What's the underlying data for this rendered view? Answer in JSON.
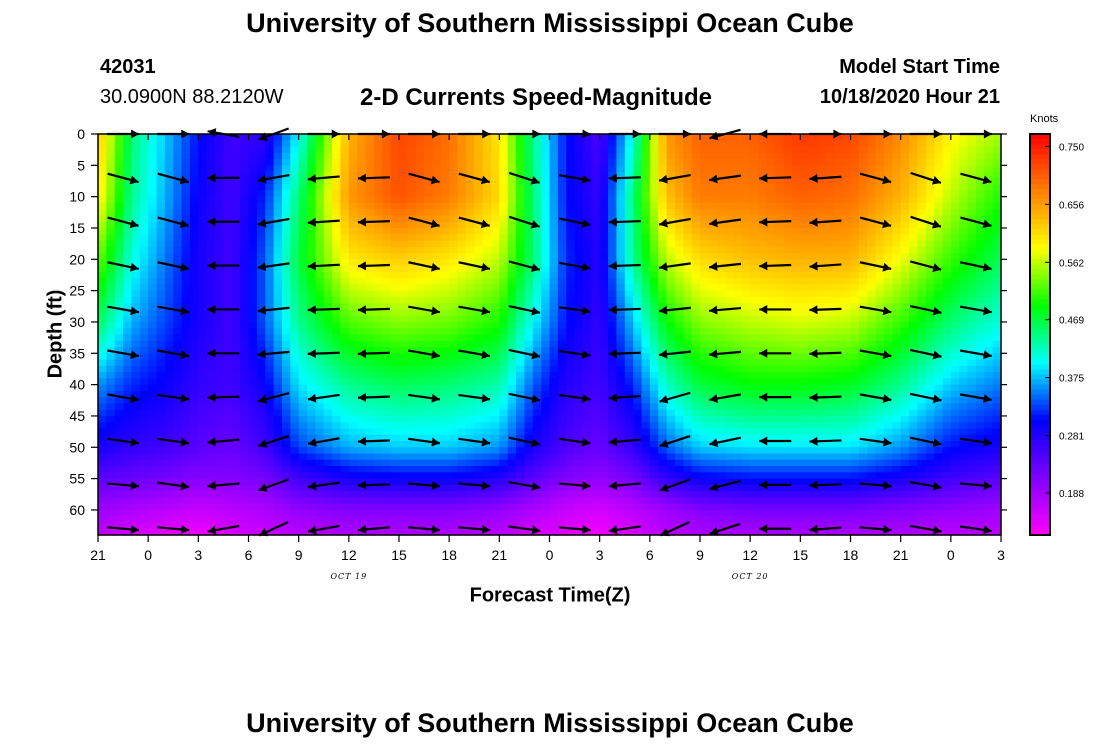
{
  "page": {
    "title_top": "University of Southern Mississippi Ocean Cube",
    "title_bottom": "University of Southern Mississippi Ocean Cube",
    "station_id": "42031",
    "station_location": "30.0900N 88.2120W",
    "subtitle": "2-D Currents Speed-Magnitude",
    "start_label": "Model Start Time",
    "start_value": "10/18/2020 Hour 21"
  },
  "chart_data": {
    "type": "heatmap",
    "title": "2-D Currents Speed-Magnitude",
    "xlabel": "Forecast Time(Z)",
    "ylabel": "Depth (ft)",
    "x_ticks": [
      "21",
      "0",
      "3",
      "6",
      "9",
      "12",
      "15",
      "18",
      "21",
      "0",
      "3",
      "6",
      "9",
      "12",
      "15",
      "18",
      "21",
      "0",
      "3"
    ],
    "date_labels": [
      {
        "text": "OCT 19",
        "at_hour": 15
      },
      {
        "text": "OCT 20",
        "at_hour": 39
      }
    ],
    "x_range_hours": [
      0,
      54
    ],
    "y_ticks": [
      0,
      5,
      10,
      15,
      20,
      25,
      30,
      35,
      40,
      45,
      50,
      55,
      60
    ],
    "ylim": [
      0,
      64
    ],
    "y_reversed": true,
    "colorbar": {
      "unit": "Knots",
      "ticks": [
        0.75,
        0.656,
        0.562,
        0.469,
        0.375,
        0.281,
        0.188
      ],
      "tick_labels": [
        "0.750",
        "0.656",
        "0.562",
        "0.469",
        "0.375",
        "0.281",
        "0.188"
      ],
      "range": [
        0.12,
        0.77
      ],
      "colors": [
        "#ff00ff",
        "#8000ff",
        "#0000ff",
        "#00ffff",
        "#00ff00",
        "#ffff00",
        "#ff8000",
        "#ff0000"
      ]
    },
    "speed_profile": {
      "hours": [
        0,
        2,
        4,
        6,
        8,
        10,
        12,
        15,
        18,
        21,
        24,
        26,
        28,
        30,
        32,
        34,
        36,
        39,
        42,
        45,
        48,
        51,
        54
      ],
      "depth_ft": [
        0,
        10,
        20,
        30,
        40,
        50,
        55,
        60,
        64
      ],
      "speed_knots": [
        [
          0.63,
          0.45,
          0.38,
          0.31,
          0.26,
          0.27,
          0.4,
          0.64,
          0.72,
          0.69,
          0.6,
          0.44,
          0.31,
          0.25,
          0.41,
          0.66,
          0.7,
          0.7,
          0.73,
          0.72,
          0.67,
          0.59,
          0.55
        ],
        [
          0.6,
          0.44,
          0.37,
          0.3,
          0.26,
          0.32,
          0.45,
          0.66,
          0.71,
          0.68,
          0.61,
          0.45,
          0.31,
          0.27,
          0.45,
          0.63,
          0.68,
          0.68,
          0.7,
          0.69,
          0.64,
          0.56,
          0.5
        ],
        [
          0.53,
          0.41,
          0.35,
          0.29,
          0.26,
          0.34,
          0.47,
          0.6,
          0.62,
          0.6,
          0.56,
          0.45,
          0.32,
          0.28,
          0.44,
          0.56,
          0.61,
          0.63,
          0.64,
          0.64,
          0.58,
          0.51,
          0.46
        ],
        [
          0.46,
          0.37,
          0.33,
          0.29,
          0.26,
          0.34,
          0.44,
          0.52,
          0.54,
          0.53,
          0.5,
          0.4,
          0.31,
          0.27,
          0.38,
          0.49,
          0.54,
          0.56,
          0.57,
          0.56,
          0.51,
          0.45,
          0.41
        ],
        [
          0.36,
          0.32,
          0.3,
          0.27,
          0.26,
          0.3,
          0.39,
          0.44,
          0.46,
          0.45,
          0.43,
          0.34,
          0.28,
          0.26,
          0.32,
          0.42,
          0.47,
          0.49,
          0.49,
          0.48,
          0.44,
          0.38,
          0.35
        ],
        [
          0.29,
          0.27,
          0.26,
          0.24,
          0.23,
          0.26,
          0.33,
          0.37,
          0.38,
          0.38,
          0.36,
          0.29,
          0.25,
          0.23,
          0.27,
          0.34,
          0.38,
          0.39,
          0.39,
          0.39,
          0.36,
          0.31,
          0.29
        ],
        [
          0.24,
          0.23,
          0.22,
          0.21,
          0.21,
          0.22,
          0.26,
          0.29,
          0.3,
          0.3,
          0.28,
          0.24,
          0.21,
          0.2,
          0.22,
          0.27,
          0.3,
          0.31,
          0.31,
          0.31,
          0.29,
          0.26,
          0.24
        ],
        [
          0.19,
          0.18,
          0.17,
          0.16,
          0.17,
          0.18,
          0.2,
          0.21,
          0.21,
          0.21,
          0.2,
          0.18,
          0.16,
          0.15,
          0.17,
          0.19,
          0.21,
          0.22,
          0.22,
          0.22,
          0.21,
          0.2,
          0.19
        ],
        [
          0.17,
          0.15,
          0.14,
          0.13,
          0.15,
          0.16,
          0.17,
          0.18,
          0.18,
          0.18,
          0.17,
          0.15,
          0.14,
          0.13,
          0.15,
          0.17,
          0.18,
          0.18,
          0.18,
          0.18,
          0.18,
          0.17,
          0.17
        ]
      ]
    },
    "vectors": {
      "hours": [
        1.5,
        4.5,
        7.5,
        10.5,
        13.5,
        16.5,
        19.5,
        22.5,
        25.5,
        28.5,
        31.5,
        34.5,
        37.5,
        40.5,
        43.5,
        46.5,
        49.5,
        52.5
      ],
      "depth_ft": [
        0,
        7,
        14,
        21,
        28,
        35,
        42,
        49,
        56,
        63
      ],
      "direction_deg": [
        [
          0,
          0,
          170,
          200,
          0,
          0,
          0,
          0,
          0,
          0,
          0,
          0,
          195,
          180,
          0,
          0,
          0,
          0
        ],
        [
          -15,
          -15,
          -180,
          190,
          -175,
          -178,
          -15,
          -15,
          -18,
          -10,
          -178,
          190,
          188,
          182,
          -176,
          -15,
          -18,
          -15
        ],
        [
          -15,
          -15,
          -180,
          190,
          -176,
          -178,
          -15,
          -15,
          -18,
          -12,
          -178,
          190,
          188,
          182,
          -176,
          -15,
          -18,
          -15
        ],
        [
          -12,
          -12,
          -180,
          188,
          -177,
          -178,
          -12,
          -12,
          -15,
          -10,
          -178,
          188,
          186,
          182,
          -176,
          -12,
          -15,
          -12
        ],
        [
          -10,
          -10,
          -180,
          186,
          -178,
          -178,
          -10,
          -10,
          -12,
          -8,
          -178,
          186,
          185,
          180,
          -178,
          -10,
          -12,
          -10
        ],
        [
          -10,
          -10,
          -180,
          185,
          -178,
          -178,
          -10,
          -10,
          -12,
          -8,
          -178,
          186,
          185,
          180,
          -178,
          -10,
          -12,
          -10
        ],
        [
          -10,
          -8,
          -178,
          195,
          -172,
          -178,
          -8,
          -8,
          -12,
          -8,
          -176,
          196,
          190,
          180,
          -178,
          -10,
          -12,
          -10
        ],
        [
          -8,
          -8,
          -175,
          198,
          -170,
          -178,
          -8,
          -8,
          -12,
          -8,
          -175,
          198,
          192,
          180,
          -178,
          -8,
          -12,
          -8
        ],
        [
          -5,
          -8,
          -175,
          200,
          -172,
          -178,
          -5,
          -5,
          -10,
          -5,
          -175,
          200,
          195,
          180,
          -178,
          -5,
          -10,
          -5
        ],
        [
          -5,
          -5,
          -170,
          205,
          -170,
          -175,
          -5,
          -5,
          -8,
          -5,
          -172,
          205,
          198,
          180,
          -176,
          -5,
          -10,
          -8
        ]
      ]
    }
  }
}
